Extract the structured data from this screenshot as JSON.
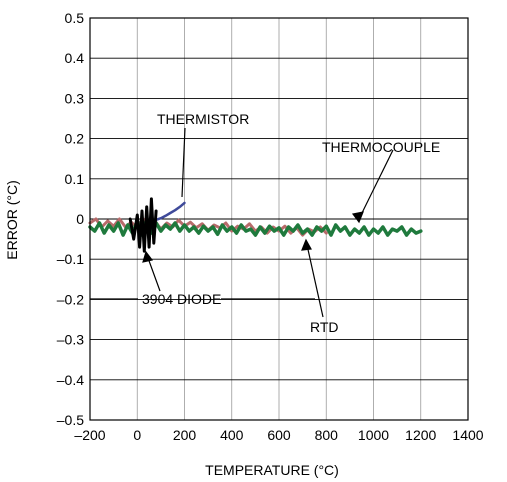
{
  "chart_data": {
    "type": "line",
    "xlabel": "TEMPERATURE (°C)",
    "ylabel": "ERROR (°C)",
    "xlim": [
      -200,
      1400
    ],
    "ylim": [
      -0.5,
      0.5
    ],
    "x_ticks": [
      -200,
      0,
      200,
      400,
      600,
      800,
      1000,
      1200,
      1400
    ],
    "y_ticks": [
      -0.5,
      -0.4,
      -0.3,
      -0.2,
      -0.1,
      0,
      0.1,
      0.2,
      0.3,
      0.4,
      0.5
    ],
    "x_tick_labels": [
      "–200",
      "0",
      "200",
      "400",
      "600",
      "800",
      "1000",
      "1200",
      "1400"
    ],
    "y_tick_labels": [
      "–0.5",
      "–0.4",
      "–0.3",
      "–0.2",
      "–0.1",
      "0",
      "0.1",
      "0.2",
      "0.3",
      "0.4",
      "0.5"
    ],
    "grid": true,
    "legend": "none",
    "series": [
      {
        "name": "THERMISTOR",
        "color": "#3f4a9a",
        "x": [
          0,
          20,
          40,
          60,
          80,
          100,
          120,
          140,
          160,
          180,
          200
        ],
        "y": [
          -0.01,
          -0.008,
          -0.006,
          -0.004,
          -0.002,
          0.002,
          0.008,
          0.015,
          0.022,
          0.03,
          0.04
        ]
      },
      {
        "name": "RTD",
        "color": "#b86b6b",
        "x": [
          -200,
          -175,
          -150,
          -125,
          -100,
          -75,
          -50,
          -25,
          0,
          25,
          50,
          75,
          100,
          125,
          150,
          175,
          200,
          225,
          250,
          275,
          300,
          325,
          350,
          375,
          400,
          425,
          450,
          475,
          500,
          525,
          550,
          575,
          600,
          625,
          650,
          675,
          700,
          725,
          750,
          775,
          800
        ],
        "y": [
          -0.01,
          0.0,
          -0.02,
          -0.005,
          -0.018,
          0.0,
          -0.02,
          -0.008,
          -0.022,
          0.0,
          -0.015,
          -0.005,
          -0.025,
          -0.01,
          -0.02,
          -0.003,
          -0.018,
          -0.008,
          -0.022,
          -0.012,
          -0.028,
          -0.015,
          -0.022,
          -0.01,
          -0.03,
          -0.018,
          -0.025,
          -0.012,
          -0.03,
          -0.02,
          -0.035,
          -0.02,
          -0.03,
          -0.018,
          -0.035,
          -0.022,
          -0.04,
          -0.025,
          -0.032,
          -0.02,
          -0.035
        ]
      },
      {
        "name": "THERMOCOUPLE",
        "color": "#1f7a3d",
        "x": [
          -200,
          -180,
          -160,
          -140,
          -120,
          -100,
          -80,
          -60,
          -40,
          -20,
          0,
          20,
          40,
          60,
          80,
          100,
          120,
          140,
          160,
          180,
          200,
          220,
          240,
          260,
          280,
          300,
          320,
          340,
          360,
          380,
          400,
          420,
          440,
          460,
          480,
          500,
          520,
          540,
          560,
          580,
          600,
          620,
          640,
          660,
          680,
          700,
          720,
          740,
          760,
          780,
          800,
          820,
          840,
          860,
          880,
          900,
          920,
          940,
          960,
          980,
          1000,
          1020,
          1040,
          1060,
          1080,
          1100,
          1120,
          1140,
          1160,
          1180,
          1200
        ],
        "y": [
          -0.02,
          -0.03,
          -0.01,
          -0.035,
          -0.015,
          -0.03,
          -0.01,
          -0.04,
          -0.015,
          -0.035,
          -0.005,
          -0.04,
          0.0,
          -0.035,
          -0.01,
          -0.03,
          -0.015,
          -0.025,
          -0.01,
          -0.03,
          -0.015,
          -0.03,
          -0.02,
          -0.035,
          -0.018,
          -0.03,
          -0.02,
          -0.038,
          -0.015,
          -0.03,
          -0.02,
          -0.035,
          -0.015,
          -0.03,
          -0.025,
          -0.04,
          -0.02,
          -0.035,
          -0.018,
          -0.03,
          -0.022,
          -0.04,
          -0.02,
          -0.03,
          -0.015,
          -0.035,
          -0.025,
          -0.04,
          -0.02,
          -0.03,
          -0.018,
          -0.04,
          -0.015,
          -0.03,
          -0.02,
          -0.04,
          -0.025,
          -0.035,
          -0.02,
          -0.04,
          -0.025,
          -0.035,
          -0.02,
          -0.04,
          -0.025,
          -0.03,
          -0.02,
          -0.04,
          -0.025,
          -0.035,
          -0.03
        ]
      },
      {
        "name": "3904 DIODE",
        "color": "#000000",
        "x": [
          -30,
          -15,
          0,
          10,
          20,
          30,
          40,
          50,
          60,
          70,
          80
        ],
        "y": [
          0.0,
          -0.05,
          0.01,
          -0.07,
          0.02,
          -0.08,
          0.03,
          -0.07,
          0.05,
          -0.06,
          0.02
        ]
      }
    ],
    "annotations": [
      {
        "text": "THERMISTOR",
        "target_series": "THERMISTOR"
      },
      {
        "text": "THERMOCOUPLE",
        "target_series": "THERMOCOUPLE"
      },
      {
        "text": "3904 DIODE",
        "target_series": "3904 DIODE"
      },
      {
        "text": "RTD",
        "target_series": "RTD"
      }
    ]
  }
}
